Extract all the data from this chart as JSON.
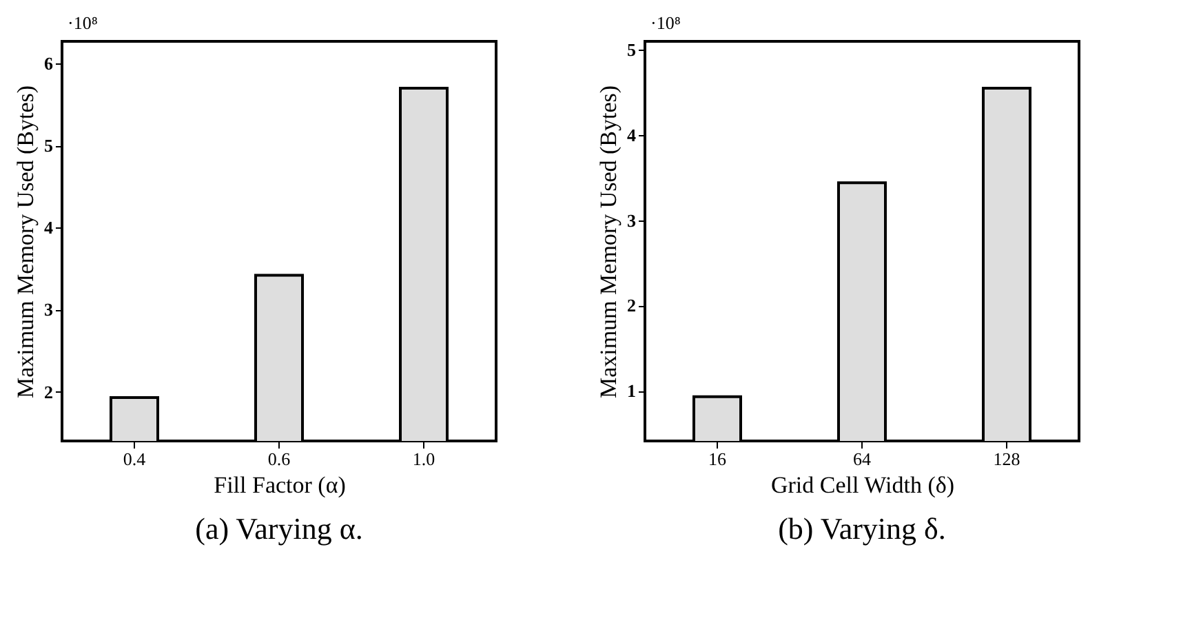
{
  "chart_data": [
    {
      "type": "bar",
      "title": "(a) Varying α.",
      "xlabel": "Fill Factor (α)",
      "ylabel": "Maximum Memory Used (Bytes)",
      "categories": [
        "0.4",
        "0.6",
        "1.0"
      ],
      "series": [
        {
          "color": "#dedede",
          "values": [
            1.93,
            3.42,
            5.7
          ]
        }
      ],
      "ylim": [
        1.4,
        6.27
      ],
      "yticks": [
        2,
        3,
        4,
        5,
        6
      ],
      "grid": false,
      "legend": false,
      "annotations": [
        "·10⁸"
      ]
    },
    {
      "type": "bar",
      "title": "(b) Varying δ.",
      "xlabel": "Grid Cell Width (δ)",
      "ylabel": "Maximum Memory Used (Bytes)",
      "categories": [
        "16",
        "64",
        "128"
      ],
      "series": [
        {
          "color": "#dedede",
          "values": [
            0.93,
            3.44,
            4.55
          ]
        }
      ],
      "ylim": [
        0.41,
        5.1
      ],
      "yticks": [
        1,
        2,
        3,
        4,
        5
      ],
      "grid": false,
      "legend": false,
      "annotations": [
        "·10⁸"
      ]
    }
  ]
}
